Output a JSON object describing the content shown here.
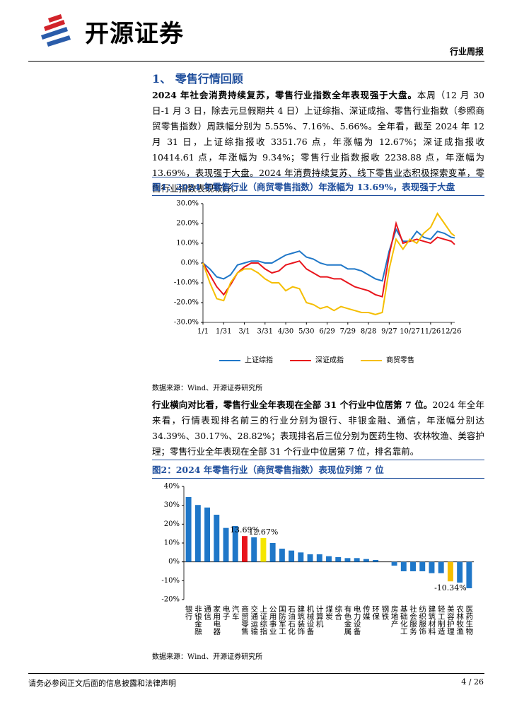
{
  "header": {
    "logo_text": "开源证券",
    "report_type": "行业周报"
  },
  "section_title": "1、 零售行情回顾",
  "paragraphs": [
    {
      "lead": "2024 年社会消费持续复苏，零售行业指数全年表现强于大盘。",
      "body": "本周（12 月 30 日-1 月 3 日，除去元旦假期共 4 日）上证综指、深证成指、零售行业指数（参照商贸零售指数）周跌幅分别为 5.55%、7.16%、5.66%。全年看，截至 2024 年 12 月 31 日，上证综指报收 3351.76 点，年涨幅为 12.67%；深证成指报收 10414.61 点，年涨幅为 9.34%；零售行业指数报收 2238.88 点，年涨幅为 13.69%，表现强于大盘。2024 年消费持续复苏、线下零售业态积极探索变革，零售行业指数表现较好。"
    },
    {
      "lead": "行业横向对比看，零售行业全年表现在全部 31 个行业中位居第 7 位。",
      "body": "2024 年全年来看，行情表现排名前三的行业分别为银行、非银金融、通信，年涨幅分别达 34.39%、30.17%、28.82%；表现排名后三位分别为医药生物、农林牧渔、美容护理；零售行业全年表现在全部 31 个行业中位居第 7 位，排名靠前。"
    }
  ],
  "figures": [
    {
      "title": "图1：2024 年零售行业（商贸零售指数）年涨幅为 13.69%，表现强于大盘",
      "source": "数据来源：Wind、开源证券研究所"
    },
    {
      "title": "图2：2024 年零售行业（商贸零售指数）表现位列第 7 位",
      "source": "数据来源：Wind、开源证券研究所"
    }
  ],
  "chart_data": [
    {
      "type": "line",
      "x": [
        "1/1",
        "1/11",
        "1/21",
        "1/31",
        "2/10",
        "2/20",
        "3/1",
        "3/11",
        "3/21",
        "3/31",
        "4/10",
        "4/20",
        "4/30",
        "5/10",
        "5/20",
        "5/30",
        "6/9",
        "6/19",
        "6/29",
        "7/9",
        "7/19",
        "7/29",
        "8/8",
        "8/18",
        "8/28",
        "9/7",
        "9/17",
        "9/27",
        "10/7",
        "10/17",
        "10/27",
        "11/6",
        "11/16",
        "11/26",
        "12/6",
        "12/16",
        "12/26",
        "12/31"
      ],
      "xlim": [
        "1/1",
        "12/31"
      ],
      "xticks": [
        "1/1",
        "1/31",
        "3/1",
        "3/31",
        "4/30",
        "5/30",
        "6/29",
        "7/29",
        "8/28",
        "9/27",
        "10/27",
        "11/26",
        "12/26"
      ],
      "ylim": [
        -30,
        30
      ],
      "yticks": [
        {
          "value": -30,
          "label": "-30.0%"
        },
        {
          "value": -20,
          "label": "-20.0%"
        },
        {
          "value": -10,
          "label": "-10.0%"
        },
        {
          "value": 0,
          "label": "0.0%"
        },
        {
          "value": 10,
          "label": "10.0%"
        },
        {
          "value": 20,
          "label": "20.0%"
        },
        {
          "value": 30,
          "label": "30.0%"
        }
      ],
      "grid": false,
      "legend": "bottom",
      "series": [
        {
          "name": "上证综指",
          "color": "#1f77c8",
          "values": [
            0,
            -3,
            -7,
            -8,
            -6,
            -1,
            0,
            1,
            1,
            0,
            0,
            2,
            4,
            5,
            6,
            3,
            2,
            0,
            -1,
            -1,
            -1,
            -3,
            -3,
            -4,
            -6,
            -8,
            -9,
            6,
            17,
            11,
            11,
            16,
            13,
            12,
            16,
            15,
            13,
            12.67
          ]
        },
        {
          "name": "深证成指",
          "color": "#e8141b",
          "values": [
            0,
            -6,
            -12,
            -16,
            -11,
            -5,
            -2,
            0,
            0,
            -3,
            -5,
            -4,
            -1,
            0,
            1,
            -3,
            -5,
            -7,
            -7,
            -8,
            -8,
            -10,
            -12,
            -13,
            -14,
            -16,
            -17,
            4,
            20,
            10,
            11,
            12,
            11,
            10,
            13,
            12,
            11,
            9.34
          ]
        },
        {
          "name": "商贸零售",
          "color": "#f5be00",
          "values": [
            0,
            -10,
            -18,
            -19,
            -10,
            -5,
            -3,
            -3,
            -5,
            -8,
            -10,
            -10,
            -14,
            -12,
            -13,
            -20,
            -21,
            -23,
            -22,
            -24,
            -22,
            -23,
            -24,
            -25,
            -25,
            -26,
            -25,
            -3,
            12,
            7,
            12,
            10,
            15,
            18,
            25,
            20,
            15,
            13.69
          ]
        }
      ]
    },
    {
      "type": "bar",
      "categories": [
        "银行",
        "非银金融",
        "通信",
        "家用电器",
        "电子",
        "汽车",
        "商贸零售",
        "交通运输",
        "上证综指",
        "公用事业",
        "国防军工",
        "石油石化",
        "建筑装饰",
        "机械设备",
        "计算机",
        "煤炭",
        "综合",
        "有色金属",
        "电力设备",
        "传媒",
        "环保",
        "钢铁",
        "房地产",
        "基础化工",
        "社会服务",
        "纺织服饰",
        "建筑材料",
        "轻工制造",
        "美容护理",
        "农林牧渔",
        "医药生物"
      ],
      "values": [
        34.39,
        30.17,
        28.82,
        25,
        18,
        19,
        13.69,
        13,
        12.67,
        10,
        7,
        6,
        5,
        4,
        4,
        3,
        2.5,
        2,
        2,
        1.5,
        1,
        0,
        -2,
        -5,
        -5,
        -5,
        -6,
        -6,
        -10.34,
        -11,
        -14
      ],
      "value_labels": [
        null,
        null,
        null,
        null,
        null,
        null,
        "13.69%",
        null,
        "12.67%",
        null,
        null,
        null,
        null,
        null,
        null,
        null,
        null,
        null,
        null,
        null,
        null,
        null,
        null,
        null,
        null,
        null,
        null,
        null,
        "-10.34%",
        null,
        null
      ],
      "colors": [
        "#1f77c8",
        "#1f77c8",
        "#1f77c8",
        "#1f77c8",
        "#1f77c8",
        "#1f77c8",
        "#e8141b",
        "#1f77c8",
        "#f5e600",
        "#1f77c8",
        "#1f77c8",
        "#1f77c8",
        "#1f77c8",
        "#1f77c8",
        "#1f77c8",
        "#1f77c8",
        "#1f77c8",
        "#1f77c8",
        "#1f77c8",
        "#1f77c8",
        "#1f77c8",
        "#1f77c8",
        "#1f77c8",
        "#1f77c8",
        "#1f77c8",
        "#1f77c8",
        "#1f77c8",
        "#1f77c8",
        "#f5be00",
        "#1f77c8",
        "#1f77c8"
      ],
      "ylim": [
        -20,
        40
      ],
      "yticks": [
        {
          "value": -20,
          "label": "-20%"
        },
        {
          "value": -10,
          "label": "-10%"
        },
        {
          "value": 0,
          "label": "0%"
        },
        {
          "value": 10,
          "label": "10%"
        },
        {
          "value": 20,
          "label": "20%"
        },
        {
          "value": 30,
          "label": "30%"
        },
        {
          "value": 40,
          "label": "40%"
        }
      ],
      "grid": false
    }
  ],
  "footer": {
    "disclaimer": "请务必参阅正文后面的信息披露和法律声明",
    "page": "4 / 26"
  }
}
